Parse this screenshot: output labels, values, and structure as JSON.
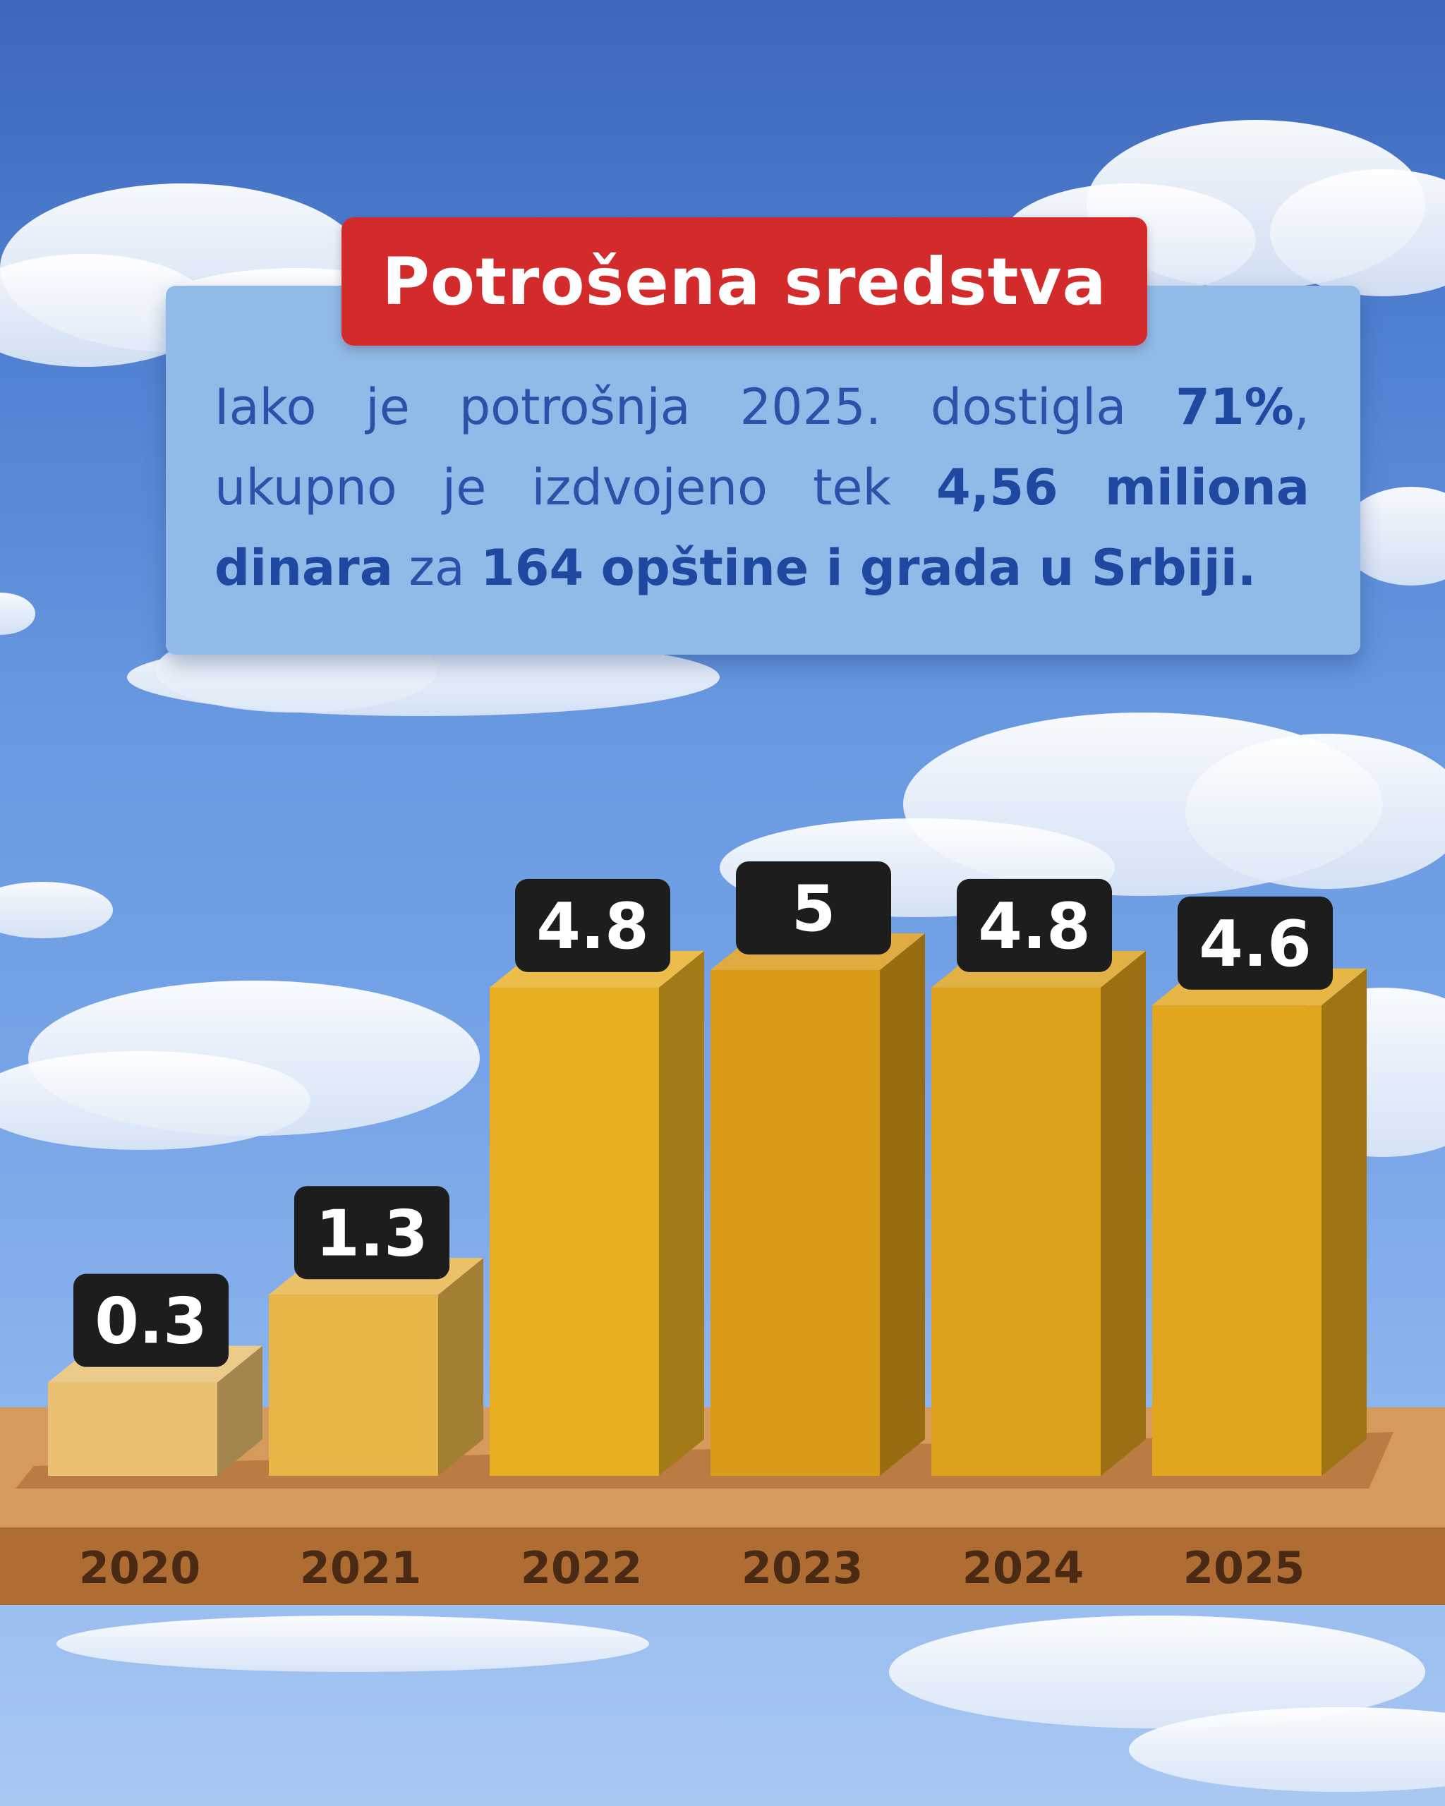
{
  "title": "Potrošena sredstva",
  "description": {
    "p1": "Iako je potrošnja 2025. dostigla ",
    "b1": "71%",
    "p2": ", ukupno je izdvojeno tek ",
    "b2": "4,56 miliona dinara",
    "p3": " za ",
    "b3": "164 opštine i grada u Srbiji."
  },
  "colors": {
    "title_bg": "#d32b2c",
    "panel_bg": "#90bae8",
    "text": "#2a52a8",
    "label_bg": "#1d1d1d",
    "label_text": "#ffffff",
    "axis_label": "#4a2a12"
  },
  "chart_data": {
    "type": "bar",
    "title": "",
    "xlabel": "",
    "ylabel": "",
    "categories": [
      "2020",
      "2021",
      "2022",
      "2023",
      "2024",
      "2025"
    ],
    "values": [
      0.3,
      1.3,
      4.8,
      5,
      4.8,
      4.6
    ],
    "value_labels": [
      "0.3",
      "1.3",
      "4.8",
      "5",
      "4.8",
      "4.6"
    ],
    "bar_colors": [
      "#e8c070",
      "#e8b548",
      "#e8ae22",
      "#d99a18",
      "#dca01a",
      "#e2a61e"
    ],
    "ylim": [
      0,
      5
    ],
    "grid": false,
    "legend": "none"
  }
}
